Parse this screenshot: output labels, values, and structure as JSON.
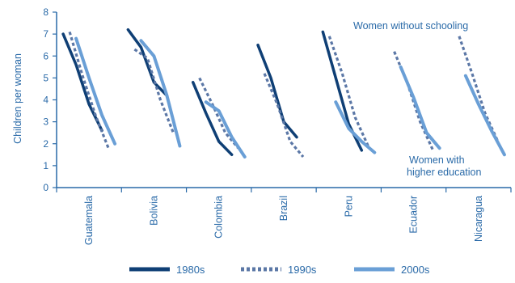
{
  "chart_data": {
    "type": "line",
    "ylabel": "Children per woman",
    "ylim": [
      0,
      8
    ],
    "yticks": [
      0,
      1,
      2,
      3,
      4,
      5,
      6,
      7,
      8
    ],
    "categories": [
      "Guatemala",
      "Bolivia",
      "Colombia",
      "Brazil",
      "Peru",
      "Ecuador",
      "Nicaragua"
    ],
    "education_levels": 4,
    "annotations": {
      "top": "Women without schooling",
      "bottom_line1": "Women with",
      "bottom_line2": "higher education"
    },
    "legend_placement": "bottom",
    "grid": false,
    "colors": {
      "axis": "#2a6aa8",
      "s1980": "#0f3f75",
      "s1990": "#5b77a6",
      "s2000": "#6a9fd6",
      "text": "#2a6aa8"
    },
    "series": [
      {
        "name": "1980s",
        "style": "solid",
        "values": [
          [
            7.0,
            5.6,
            3.8,
            2.6
          ],
          [
            7.2,
            6.4,
            4.8,
            4.2
          ],
          [
            4.8,
            3.4,
            2.1,
            1.5
          ],
          [
            6.5,
            5.0,
            3.0,
            2.3
          ],
          [
            7.1,
            5.0,
            2.9,
            1.7
          ],
          null,
          null
        ]
      },
      {
        "name": "1990s",
        "style": "dotted",
        "values": [
          [
            7.1,
            5.1,
            3.3,
            1.8
          ],
          [
            6.3,
            5.9,
            4.0,
            2.5
          ],
          [
            5.0,
            3.8,
            2.5,
            1.8
          ],
          [
            5.2,
            3.8,
            2.1,
            1.4
          ],
          [
            6.9,
            5.2,
            3.2,
            1.9
          ],
          [
            6.2,
            4.8,
            3.0,
            1.7
          ],
          [
            6.9,
            5.2,
            3.4,
            2.1
          ]
        ]
      },
      {
        "name": "2000s",
        "style": "solid",
        "values": [
          [
            6.8,
            5.0,
            3.3,
            2.0
          ],
          [
            6.7,
            6.0,
            4.2,
            1.9
          ],
          [
            3.9,
            3.5,
            2.3,
            1.4
          ],
          null,
          [
            3.9,
            2.7,
            2.1,
            1.6
          ],
          [
            5.5,
            4.1,
            2.5,
            1.8
          ],
          [
            5.1,
            3.8,
            2.6,
            1.5
          ]
        ]
      }
    ],
    "legend": [
      {
        "label": "1980s",
        "key": "s1980",
        "dash": ""
      },
      {
        "label": "1990s",
        "key": "s1990",
        "dash": "4 3"
      },
      {
        "label": "2000s",
        "key": "s2000",
        "dash": ""
      }
    ]
  }
}
